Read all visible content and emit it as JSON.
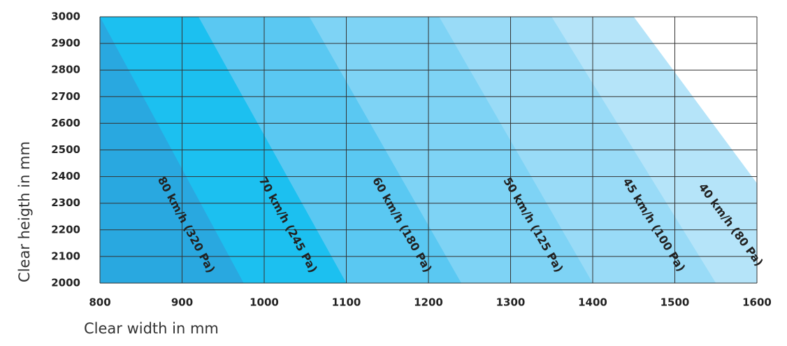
{
  "chart_data": {
    "type": "region",
    "xlabel": "Clear width in mm",
    "ylabel": "Clear heigth in mm",
    "xlim": [
      800,
      1600
    ],
    "ylim": [
      2000,
      3000
    ],
    "xticks": [
      800,
      900,
      1000,
      1100,
      1200,
      1300,
      1400,
      1500,
      1600
    ],
    "yticks": [
      2000,
      2100,
      2200,
      2300,
      2400,
      2500,
      2600,
      2700,
      2800,
      2900,
      3000
    ],
    "grid": true,
    "series": [
      {
        "name": "80 km/h (320 Pa)",
        "color": "#29a8e0",
        "x": [
          800,
          975
        ],
        "y": [
          3000,
          2000
        ]
      },
      {
        "name": "70 km/h (245 Pa)",
        "color": "#1cc0f0",
        "x": [
          920,
          1100
        ],
        "y": [
          3000,
          2000
        ]
      },
      {
        "name": "60 km/h (180 Pa)",
        "color": "#5ac8f2",
        "x": [
          1055,
          1240
        ],
        "y": [
          3000,
          2000
        ]
      },
      {
        "name": "50 km/h (125 Pa)",
        "color": "#7ed3f5",
        "x": [
          1213,
          1400
        ],
        "y": [
          3000,
          2000
        ]
      },
      {
        "name": "45 km/h (100 Pa)",
        "color": "#99dbf7",
        "x": [
          1350,
          1550
        ],
        "y": [
          3000,
          2000
        ]
      },
      {
        "name": "40 km/h (80 Pa)",
        "color": "#b5e4f9",
        "x": [
          1450,
          1600
        ],
        "y": [
          3000,
          2375
        ]
      }
    ]
  }
}
